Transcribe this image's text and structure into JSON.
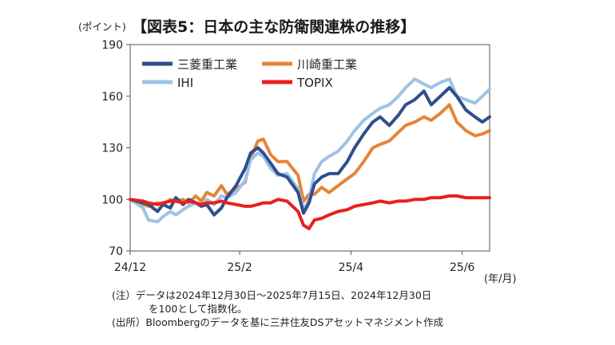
{
  "chart_data": {
    "type": "line",
    "title": "【図表5：日本の主な防衛関連株の推移】",
    "ylabel": "(ポイント)",
    "xlabel": "(年/月)",
    "ylim": [
      70,
      190
    ],
    "yticks": [
      70,
      100,
      130,
      160,
      190
    ],
    "x_range": [
      "2024-12-30",
      "2025-07-15"
    ],
    "xticks": [
      {
        "date": "2024-12-30",
        "label": "24/12"
      },
      {
        "date": "2025-02-28",
        "label": "25/2"
      },
      {
        "date": "2025-04-30",
        "label": "25/4"
      },
      {
        "date": "2025-06-30",
        "label": "25/6"
      }
    ],
    "grid": false,
    "legend_position": "top-left",
    "series": [
      {
        "name": "三菱重工業",
        "color": "#2f4f8c",
        "points": [
          [
            "2024-12-30",
            100
          ],
          [
            "2025-01-06",
            98
          ],
          [
            "2025-01-09",
            97
          ],
          [
            "2025-01-14",
            93
          ],
          [
            "2025-01-17",
            97
          ],
          [
            "2025-01-21",
            95
          ],
          [
            "2025-01-24",
            101
          ],
          [
            "2025-01-28",
            97
          ],
          [
            "2025-01-31",
            100
          ],
          [
            "2025-02-04",
            98
          ],
          [
            "2025-02-07",
            96
          ],
          [
            "2025-02-10",
            97
          ],
          [
            "2025-02-14",
            91
          ],
          [
            "2025-02-18",
            95
          ],
          [
            "2025-02-21",
            101
          ],
          [
            "2025-02-26",
            108
          ],
          [
            "2025-03-03",
            118
          ],
          [
            "2025-03-06",
            127
          ],
          [
            "2025-03-10",
            130
          ],
          [
            "2025-03-13",
            127
          ],
          [
            "2025-03-17",
            121
          ],
          [
            "2025-03-21",
            115
          ],
          [
            "2025-03-26",
            113
          ],
          [
            "2025-04-01",
            104
          ],
          [
            "2025-04-04",
            92
          ],
          [
            "2025-04-07",
            98
          ],
          [
            "2025-04-10",
            109
          ],
          [
            "2025-04-14",
            113
          ],
          [
            "2025-04-18",
            115
          ],
          [
            "2025-04-23",
            115
          ],
          [
            "2025-04-28",
            122
          ],
          [
            "2025-05-02",
            130
          ],
          [
            "2025-05-07",
            138
          ],
          [
            "2025-05-12",
            145
          ],
          [
            "2025-05-16",
            148
          ],
          [
            "2025-05-21",
            143
          ],
          [
            "2025-05-26",
            149
          ],
          [
            "2025-05-30",
            155
          ],
          [
            "2025-06-04",
            158
          ],
          [
            "2025-06-09",
            163
          ],
          [
            "2025-06-13",
            155
          ],
          [
            "2025-06-18",
            160
          ],
          [
            "2025-06-23",
            165
          ],
          [
            "2025-06-27",
            160
          ],
          [
            "2025-07-02",
            152
          ],
          [
            "2025-07-07",
            148
          ],
          [
            "2025-07-11",
            145
          ],
          [
            "2025-07-15",
            148
          ]
        ]
      },
      {
        "name": "川崎重工業",
        "color": "#e6843a",
        "points": [
          [
            "2024-12-30",
            100
          ],
          [
            "2025-01-06",
            97
          ],
          [
            "2025-01-09",
            96
          ],
          [
            "2025-01-14",
            98
          ],
          [
            "2025-01-17",
            97
          ],
          [
            "2025-01-21",
            100
          ],
          [
            "2025-01-24",
            99
          ],
          [
            "2025-01-28",
            100
          ],
          [
            "2025-01-31",
            98
          ],
          [
            "2025-02-04",
            102
          ],
          [
            "2025-02-07",
            99
          ],
          [
            "2025-02-10",
            104
          ],
          [
            "2025-02-14",
            102
          ],
          [
            "2025-02-18",
            108
          ],
          [
            "2025-02-21",
            103
          ],
          [
            "2025-02-26",
            106
          ],
          [
            "2025-03-03",
            110
          ],
          [
            "2025-03-06",
            124
          ],
          [
            "2025-03-10",
            134
          ],
          [
            "2025-03-13",
            135
          ],
          [
            "2025-03-17",
            126
          ],
          [
            "2025-03-21",
            122
          ],
          [
            "2025-03-26",
            122
          ],
          [
            "2025-04-01",
            114
          ],
          [
            "2025-04-04",
            99
          ],
          [
            "2025-04-07",
            103
          ],
          [
            "2025-04-10",
            103
          ],
          [
            "2025-04-14",
            107
          ],
          [
            "2025-04-18",
            104
          ],
          [
            "2025-04-23",
            108
          ],
          [
            "2025-04-28",
            112
          ],
          [
            "2025-05-02",
            115
          ],
          [
            "2025-05-07",
            122
          ],
          [
            "2025-05-12",
            130
          ],
          [
            "2025-05-16",
            132
          ],
          [
            "2025-05-21",
            134
          ],
          [
            "2025-05-26",
            139
          ],
          [
            "2025-05-30",
            143
          ],
          [
            "2025-06-04",
            145
          ],
          [
            "2025-06-09",
            148
          ],
          [
            "2025-06-13",
            146
          ],
          [
            "2025-06-18",
            150
          ],
          [
            "2025-06-23",
            155
          ],
          [
            "2025-06-27",
            145
          ],
          [
            "2025-07-02",
            140
          ],
          [
            "2025-07-07",
            137
          ],
          [
            "2025-07-11",
            138
          ],
          [
            "2025-07-15",
            140
          ]
        ]
      },
      {
        "name": "IHI",
        "color": "#9dc3e6",
        "points": [
          [
            "2024-12-30",
            100
          ],
          [
            "2025-01-06",
            95
          ],
          [
            "2025-01-09",
            88
          ],
          [
            "2025-01-14",
            87
          ],
          [
            "2025-01-17",
            90
          ],
          [
            "2025-01-21",
            93
          ],
          [
            "2025-01-24",
            91
          ],
          [
            "2025-01-28",
            94
          ],
          [
            "2025-01-31",
            96
          ],
          [
            "2025-02-04",
            98
          ],
          [
            "2025-02-07",
            96
          ],
          [
            "2025-02-10",
            100
          ],
          [
            "2025-02-14",
            97
          ],
          [
            "2025-02-18",
            102
          ],
          [
            "2025-02-21",
            101
          ],
          [
            "2025-02-26",
            104
          ],
          [
            "2025-03-03",
            111
          ],
          [
            "2025-03-06",
            123
          ],
          [
            "2025-03-10",
            127
          ],
          [
            "2025-03-13",
            125
          ],
          [
            "2025-03-17",
            118
          ],
          [
            "2025-03-21",
            114
          ],
          [
            "2025-03-26",
            115
          ],
          [
            "2025-04-01",
            106
          ],
          [
            "2025-04-04",
            94
          ],
          [
            "2025-04-07",
            100
          ],
          [
            "2025-04-10",
            115
          ],
          [
            "2025-04-14",
            122
          ],
          [
            "2025-04-18",
            125
          ],
          [
            "2025-04-23",
            128
          ],
          [
            "2025-04-28",
            134
          ],
          [
            "2025-05-02",
            140
          ],
          [
            "2025-05-07",
            146
          ],
          [
            "2025-05-12",
            150
          ],
          [
            "2025-05-16",
            153
          ],
          [
            "2025-05-21",
            155
          ],
          [
            "2025-05-26",
            160
          ],
          [
            "2025-05-30",
            165
          ],
          [
            "2025-06-04",
            170
          ],
          [
            "2025-06-09",
            167
          ],
          [
            "2025-06-13",
            165
          ],
          [
            "2025-06-18",
            168
          ],
          [
            "2025-06-23",
            170
          ],
          [
            "2025-06-27",
            160
          ],
          [
            "2025-07-02",
            158
          ],
          [
            "2025-07-07",
            156
          ],
          [
            "2025-07-11",
            160
          ],
          [
            "2025-07-15",
            164
          ]
        ]
      },
      {
        "name": "TOPIX",
        "color": "#e8201c",
        "points": [
          [
            "2024-12-30",
            100
          ],
          [
            "2025-01-06",
            99
          ],
          [
            "2025-01-09",
            98
          ],
          [
            "2025-01-14",
            97
          ],
          [
            "2025-01-17",
            98
          ],
          [
            "2025-01-21",
            99
          ],
          [
            "2025-01-24",
            99
          ],
          [
            "2025-01-28",
            98
          ],
          [
            "2025-01-31",
            99
          ],
          [
            "2025-02-04",
            98
          ],
          [
            "2025-02-07",
            97
          ],
          [
            "2025-02-10",
            98
          ],
          [
            "2025-02-14",
            98
          ],
          [
            "2025-02-18",
            99
          ],
          [
            "2025-02-21",
            98
          ],
          [
            "2025-02-26",
            97
          ],
          [
            "2025-03-03",
            96
          ],
          [
            "2025-03-06",
            96
          ],
          [
            "2025-03-10",
            97
          ],
          [
            "2025-03-13",
            98
          ],
          [
            "2025-03-17",
            98
          ],
          [
            "2025-03-21",
            100
          ],
          [
            "2025-03-26",
            99
          ],
          [
            "2025-04-01",
            93
          ],
          [
            "2025-04-04",
            85
          ],
          [
            "2025-04-07",
            83
          ],
          [
            "2025-04-10",
            88
          ],
          [
            "2025-04-14",
            89
          ],
          [
            "2025-04-18",
            91
          ],
          [
            "2025-04-23",
            93
          ],
          [
            "2025-04-28",
            94
          ],
          [
            "2025-05-02",
            96
          ],
          [
            "2025-05-07",
            97
          ],
          [
            "2025-05-12",
            98
          ],
          [
            "2025-05-16",
            99
          ],
          [
            "2025-05-21",
            98
          ],
          [
            "2025-05-26",
            99
          ],
          [
            "2025-05-30",
            99
          ],
          [
            "2025-06-04",
            100
          ],
          [
            "2025-06-09",
            100
          ],
          [
            "2025-06-13",
            101
          ],
          [
            "2025-06-18",
            101
          ],
          [
            "2025-06-23",
            102
          ],
          [
            "2025-06-27",
            102
          ],
          [
            "2025-07-02",
            101
          ],
          [
            "2025-07-07",
            101
          ],
          [
            "2025-07-11",
            101
          ],
          [
            "2025-07-15",
            101
          ]
        ]
      }
    ]
  },
  "notes": {
    "note_line1": "(注）データは2024年12月30日～2025年7月15日、2024年12月30日",
    "note_line2": "を100として指数化。",
    "source": "(出所）Bloombergのデータを基に三井住友DSアセットマネジメント作成"
  }
}
